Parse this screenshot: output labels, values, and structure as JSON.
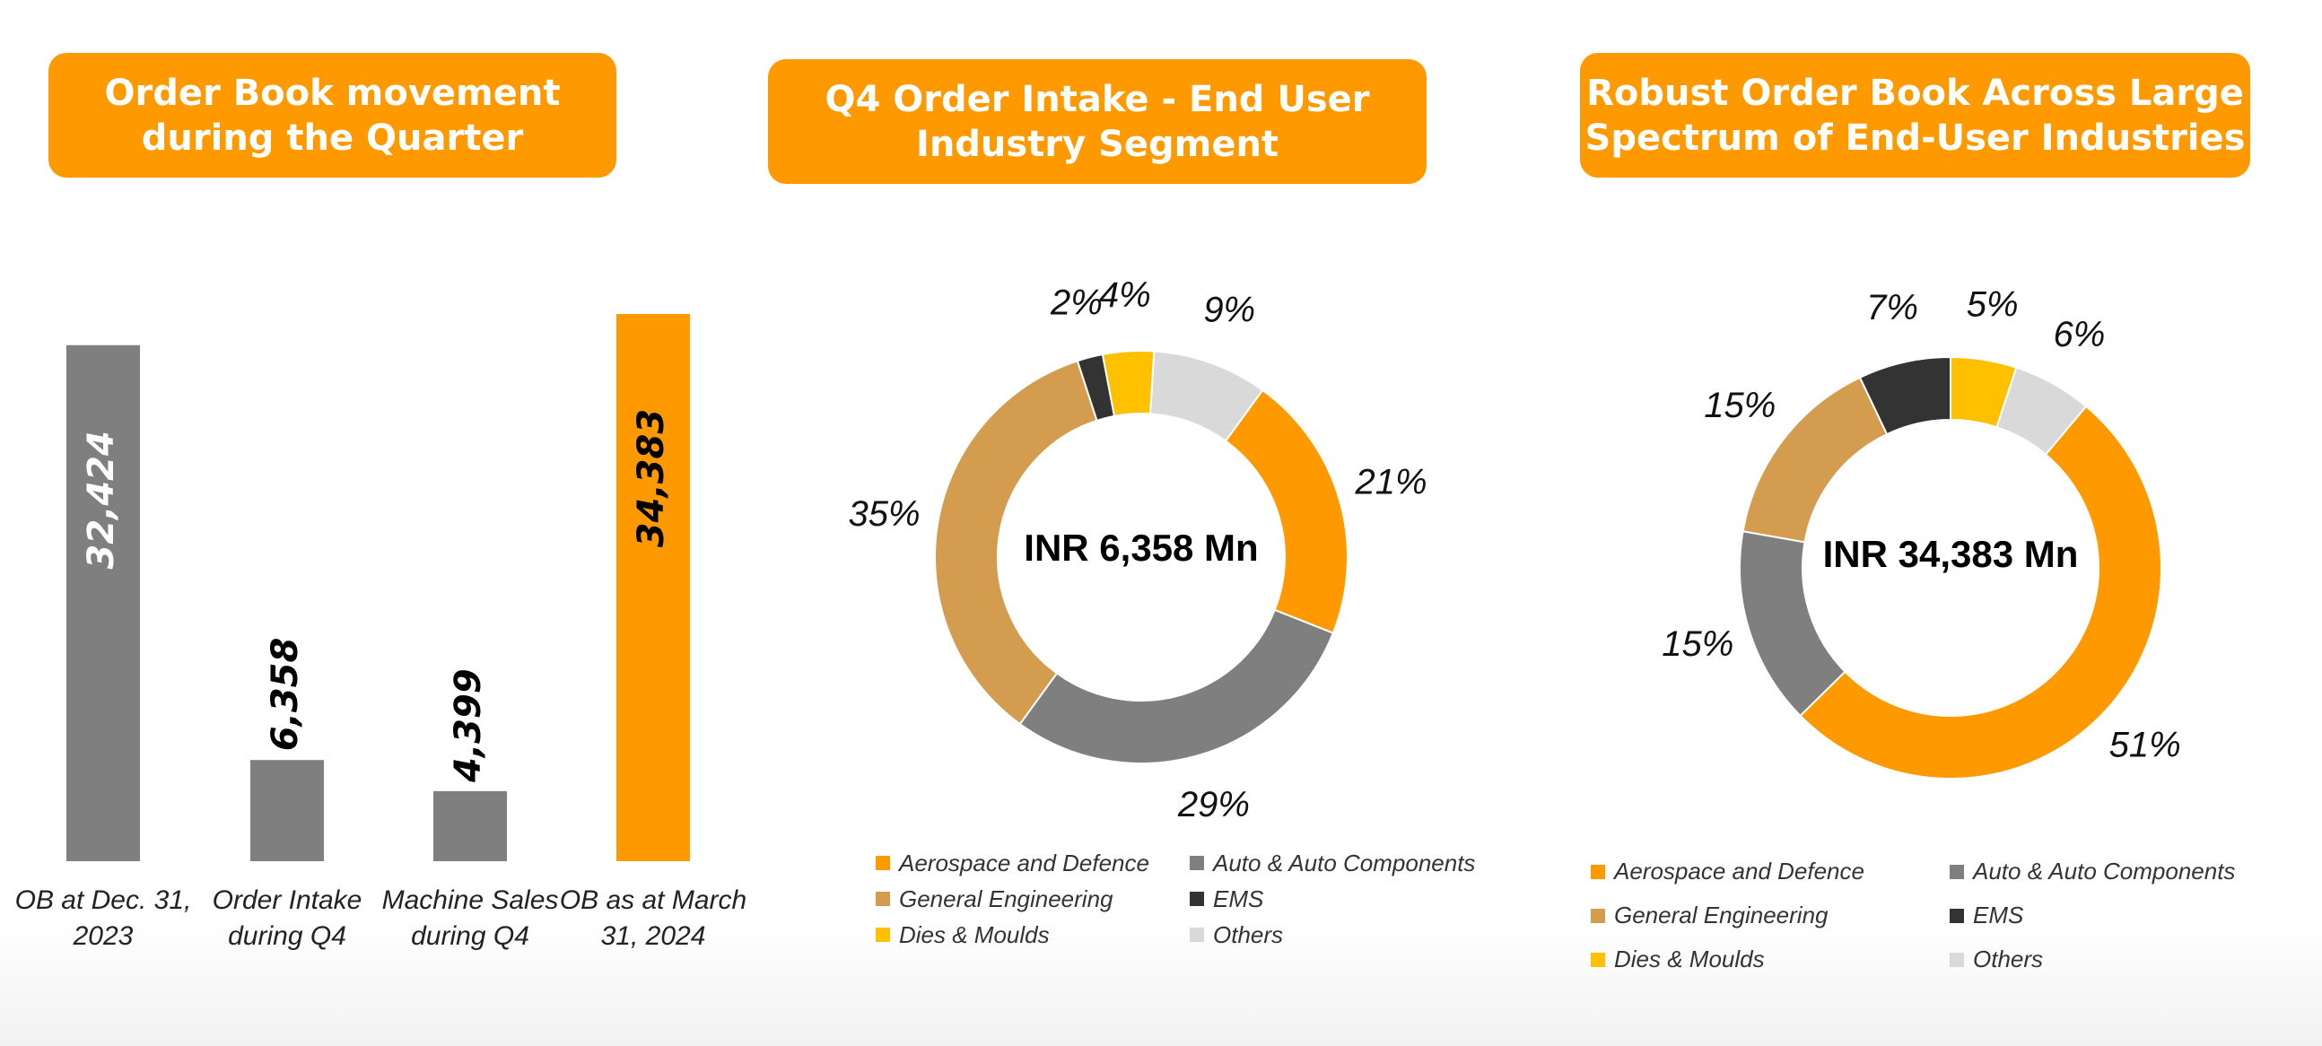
{
  "banners": {
    "b1": "Order Book movement\nduring the Quarter",
    "b2": "Q4 Order Intake - End User\nIndustry Segment",
    "b3": "Robust Order Book Across Large\nSpectrum of End-User Industries"
  },
  "colors": {
    "aerospace": "#FF9900",
    "auto": "#7F7F7F",
    "general": "#D39C4E",
    "ems": "#333333",
    "dies": "#FFC000",
    "others": "#D9D9D9"
  },
  "legend": [
    {
      "label": "Aerospace and Defence",
      "color": "#FF9900"
    },
    {
      "label": "Auto & Auto Components",
      "color": "#7F7F7F"
    },
    {
      "label": "General Engineering",
      "color": "#D39C4E"
    },
    {
      "label": "EMS",
      "color": "#333333"
    },
    {
      "label": "Dies & Moulds",
      "color": "#FFC000"
    },
    {
      "label": "Others",
      "color": "#D9D9D9"
    }
  ],
  "chart_data": [
    {
      "type": "bar",
      "categories": [
        "OB at Dec. 31,\n2023",
        "Order Intake\nduring Q4",
        "Machine Sales\nduring Q4",
        "OB as at March\n31, 2024"
      ],
      "values": [
        32424,
        6358,
        4399,
        34383
      ],
      "value_labels": [
        "32,424",
        "6,358",
        "4,399",
        "34,383"
      ],
      "colors": [
        "#7F7F7F",
        "#7F7F7F",
        "#7F7F7F",
        "#FF9900"
      ],
      "label_positions": [
        "inside",
        "outside",
        "outside",
        "inside"
      ],
      "label_colors": [
        "#ffffff",
        "#000000",
        "#000000",
        "#000000"
      ],
      "ylim": [
        0,
        34383
      ]
    },
    {
      "type": "pie",
      "center_label": "INR 6,358 Mn",
      "slices": [
        {
          "label": "Aerospace and Defence",
          "value": 21,
          "text": "21%",
          "color": "#FF9900"
        },
        {
          "label": "Auto & Auto Components",
          "value": 29,
          "text": "29%",
          "color": "#7F7F7F"
        },
        {
          "label": "General Engineering",
          "value": 35,
          "text": "35%",
          "color": "#D39C4E"
        },
        {
          "label": "EMS",
          "value": 2,
          "text": "2%",
          "color": "#333333"
        },
        {
          "label": "Dies & Moulds",
          "value": 4,
          "text": "4%",
          "color": "#FFC000"
        },
        {
          "label": "Others",
          "value": 9,
          "text": "9%",
          "color": "#D9D9D9"
        }
      ]
    },
    {
      "type": "pie",
      "center_label": "INR 34,383 Mn",
      "slices": [
        {
          "label": "Aerospace and Defence",
          "value": 51,
          "text": "51%",
          "color": "#FF9900"
        },
        {
          "label": "Auto & Auto Components",
          "value": 15,
          "text": "15%",
          "color": "#7F7F7F"
        },
        {
          "label": "General Engineering",
          "value": 15,
          "text": "15%",
          "color": "#D39C4E"
        },
        {
          "label": "EMS",
          "value": 7,
          "text": "7%",
          "color": "#333333"
        },
        {
          "label": "Dies & Moulds",
          "value": 5,
          "text": "5%",
          "color": "#FFC000"
        },
        {
          "label": "Others",
          "value": 6,
          "text": "6%",
          "color": "#D9D9D9"
        }
      ]
    }
  ]
}
